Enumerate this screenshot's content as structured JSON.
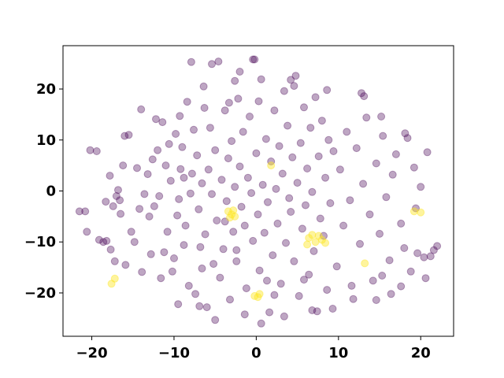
{
  "chart_data": {
    "type": "scatter",
    "title": "",
    "xlabel": "",
    "ylabel": "",
    "xlim": [
      -23.5,
      24
    ],
    "ylim": [
      -28.5,
      28.5
    ],
    "xticks": [
      -20,
      -10,
      0,
      10,
      20
    ],
    "yticks": [
      -20,
      -10,
      0,
      10,
      20
    ],
    "xtick_labels": [
      "−20",
      "−10",
      "0",
      "10",
      "20"
    ],
    "ytick_labels": [
      "−20",
      "−10",
      "0",
      "10",
      "20"
    ],
    "grid": false,
    "legend": "none",
    "series": [
      {
        "color": "#440154",
        "alpha": 0.35,
        "points": [
          [
            -21.5,
            -4
          ],
          [
            -20.8,
            -4
          ],
          [
            -20.6,
            -8
          ],
          [
            -20.2,
            8
          ],
          [
            -19.4,
            7.8
          ],
          [
            -18.6,
            -10
          ],
          [
            -18.2,
            -9.8
          ],
          [
            -17.8,
            3
          ],
          [
            -17.4,
            -3
          ],
          [
            -17,
            -1
          ],
          [
            -17.7,
            -11.5
          ],
          [
            -17.2,
            -13.8
          ],
          [
            -16.8,
            0.2
          ],
          [
            -16.5,
            -4.5
          ],
          [
            -16.2,
            5
          ],
          [
            -16,
            10.8
          ],
          [
            -15.5,
            11
          ],
          [
            -15.2,
            -8
          ],
          [
            -14.8,
            -10
          ],
          [
            -14.5,
            4.5
          ],
          [
            -14.2,
            -3.5
          ],
          [
            -14,
            16
          ],
          [
            -13.6,
            -0.6
          ],
          [
            -13.2,
            3.3
          ],
          [
            -13,
            -5
          ],
          [
            -12.6,
            6.2
          ],
          [
            -12.4,
            -3
          ],
          [
            -12,
            8
          ],
          [
            -11.8,
            -1
          ],
          [
            -11.4,
            13.5
          ],
          [
            -11.2,
            -12
          ],
          [
            -11,
            5
          ],
          [
            -10.8,
            -8
          ],
          [
            -10.4,
            2
          ],
          [
            -10.2,
            -15.8
          ],
          [
            -10,
            -13.2
          ],
          [
            -9.8,
            11.2
          ],
          [
            -9.6,
            -4.8
          ],
          [
            -9.4,
            -1.6
          ],
          [
            -9.2,
            4.3
          ],
          [
            -9,
            8.6
          ],
          [
            -8.8,
            -10.6
          ],
          [
            -8.6,
            -6.8
          ],
          [
            -8.4,
            17.5
          ],
          [
            -8.2,
            -18.6
          ],
          [
            -8,
            -0.5
          ],
          [
            -7.8,
            3.4
          ],
          [
            -7.6,
            12
          ],
          [
            -7.4,
            -20.2
          ],
          [
            -7.2,
            7
          ],
          [
            -7,
            -3.6
          ],
          [
            -6.8,
            -11
          ],
          [
            -6.6,
            1.5
          ],
          [
            -6.4,
            20.5
          ],
          [
            -6.2,
            -8.5
          ],
          [
            -6,
            -22.8
          ],
          [
            -5.8,
            4.2
          ],
          [
            -5.6,
            12.4
          ],
          [
            -5.4,
            -0.6
          ],
          [
            -5.2,
            -14.3
          ],
          [
            -5,
            8
          ],
          [
            -4.8,
            -5.8
          ],
          [
            -4.6,
            25.4
          ],
          [
            -4.4,
            -17
          ],
          [
            -4.2,
            2.2
          ],
          [
            -4,
            -11.4
          ],
          [
            -3.8,
            15.8
          ],
          [
            -3.6,
            -2
          ],
          [
            -3.4,
            6.4
          ],
          [
            -3.2,
            -21.3
          ],
          [
            -3,
            9.8
          ],
          [
            -2.8,
            -8
          ],
          [
            -2.6,
            0.8
          ],
          [
            -2.4,
            -13.8
          ],
          [
            -2.2,
            18.1
          ],
          [
            -2,
            4.8
          ],
          [
            -1.8,
            -3.1
          ],
          [
            -1.6,
            11.6
          ],
          [
            -1.4,
            -6.8
          ],
          [
            -1.2,
            -19.1
          ],
          [
            -1,
            2.6
          ],
          [
            -0.8,
            14.6
          ],
          [
            -0.6,
            -0.4
          ],
          [
            -0.4,
            -9.8
          ],
          [
            -0.2,
            25.8
          ],
          [
            0,
            7.4
          ],
          [
            0.2,
            -4.6
          ],
          [
            0.4,
            -15.6
          ],
          [
            0.6,
            21.9
          ],
          [
            0.8,
            1.2
          ],
          [
            1,
            -8.2
          ],
          [
            1.2,
            10.2
          ],
          [
            1.4,
            -2.2
          ],
          [
            1.6,
            -23.8
          ],
          [
            1.8,
            5.8
          ],
          [
            2,
            -12.6
          ],
          [
            2.2,
            15.8
          ],
          [
            2.4,
            0.4
          ],
          [
            2.6,
            -6.4
          ],
          [
            2.8,
            8.8
          ],
          [
            3,
            -18.2
          ],
          [
            3.2,
            3.4
          ],
          [
            3.4,
            19.6
          ],
          [
            3.6,
            -10.2
          ],
          [
            3.8,
            12.8
          ],
          [
            4,
            -1.4
          ],
          [
            4.2,
            -4.1
          ],
          [
            4.4,
            6.6
          ],
          [
            4.6,
            -13.8
          ],
          [
            4.8,
            22.6
          ],
          [
            5,
            1.6
          ],
          [
            5.2,
            -20.6
          ],
          [
            5.4,
            9.4
          ],
          [
            5.6,
            -7.4
          ],
          [
            5.8,
            16.4
          ],
          [
            6,
            -2.8
          ],
          [
            6.2,
            4.4
          ],
          [
            6.4,
            -16.4
          ],
          [
            6.6,
            12.4
          ],
          [
            6.8,
            -0.2
          ],
          [
            7,
            -11.8
          ],
          [
            7.2,
            18.4
          ],
          [
            7.4,
            -23.6
          ],
          [
            7.6,
            6.8
          ],
          [
            7.8,
            -5.4
          ],
          [
            8,
            13.8
          ],
          [
            8.2,
            -8.8
          ],
          [
            8.4,
            2.6
          ],
          [
            8.6,
            -19.4
          ],
          [
            8.8,
            10
          ],
          [
            9,
            -2.4
          ],
          [
            9.4,
            7.8
          ],
          [
            9.8,
            -14.8
          ],
          [
            10.2,
            4.2
          ],
          [
            10.6,
            -6.8
          ],
          [
            11,
            11.6
          ],
          [
            11.4,
            -1.8
          ],
          [
            11.8,
            -21.2
          ],
          [
            12.2,
            8.4
          ],
          [
            12.6,
            -10.4
          ],
          [
            13,
            1.4
          ],
          [
            13.4,
            14.4
          ],
          [
            13.8,
            -4.6
          ],
          [
            14.2,
            -17.6
          ],
          [
            14.6,
            5.4
          ],
          [
            15,
            -8.4
          ],
          [
            15.4,
            10.8
          ],
          [
            15.8,
            -1.2
          ],
          [
            16.2,
            -13.6
          ],
          [
            16.6,
            3.2
          ],
          [
            17,
            7.2
          ],
          [
            17.6,
            -6.4
          ],
          [
            18,
            -11.2
          ],
          [
            18.4,
            10.4
          ],
          [
            18.8,
            -15.8
          ],
          [
            19.2,
            4.6
          ],
          [
            19.6,
            -12.2
          ],
          [
            20,
            0.8
          ],
          [
            20.4,
            -13
          ],
          [
            20.8,
            7.6
          ],
          [
            21.2,
            -12.8
          ],
          [
            21.6,
            -11.6
          ],
          [
            22,
            -10.8
          ],
          [
            -16.6,
            -1.8
          ],
          [
            -12.8,
            -12.4
          ],
          [
            -10.6,
            9.2
          ],
          [
            -8.8,
            2.6
          ],
          [
            -6.6,
            -15.2
          ],
          [
            -5,
            -25.3
          ],
          [
            -3.8,
            -6
          ],
          [
            -2.6,
            21.6
          ],
          [
            -1.4,
            -24.2
          ],
          [
            0.6,
            -26
          ],
          [
            2.2,
            -20.4
          ],
          [
            3.4,
            -24.6
          ],
          [
            4.6,
            20.6
          ],
          [
            6.8,
            -23.4
          ],
          [
            8.6,
            19.8
          ],
          [
            12.8,
            19.2
          ],
          [
            14.6,
            -21.4
          ],
          [
            16.4,
            -20.2
          ],
          [
            -7.9,
            25.3
          ],
          [
            -5.4,
            24.9
          ],
          [
            -2,
            23.4
          ],
          [
            -0.4,
            25.8
          ],
          [
            4.2,
            21.8
          ],
          [
            13.1,
            18.6
          ],
          [
            15.2,
            14.6
          ],
          [
            18.1,
            11.3
          ],
          [
            19.4,
            -3.4
          ],
          [
            -19.1,
            -9.6
          ],
          [
            -18.3,
            -2.1
          ],
          [
            -15.9,
            -14.5
          ],
          [
            -13.9,
            -15.9
          ],
          [
            -11.6,
            -17.1
          ],
          [
            -9.5,
            -22.2
          ],
          [
            -6.9,
            -22.6
          ],
          [
            -2.4,
            -11.6
          ],
          [
            1.3,
            -17.6
          ],
          [
            5.8,
            -17.4
          ],
          [
            9.3,
            -23.1
          ],
          [
            11.6,
            -18.6
          ],
          [
            15.3,
            -16.6
          ],
          [
            17.6,
            -18.7
          ],
          [
            20.6,
            -17.1
          ],
          [
            -12.2,
            14.1
          ],
          [
            -9.3,
            14.7
          ],
          [
            -6.3,
            16.3
          ],
          [
            -3.3,
            17.3
          ],
          [
            0.3,
            17.6
          ]
        ]
      },
      {
        "color": "#fde725",
        "alpha": 0.45,
        "points": [
          [
            -3.4,
            -4
          ],
          [
            -3,
            -4.6
          ],
          [
            -2.8,
            -3.8
          ],
          [
            -3.2,
            -5.2
          ],
          [
            -2.6,
            -5
          ],
          [
            1.8,
            5
          ],
          [
            0.2,
            -20.8
          ],
          [
            -0.2,
            -20.6
          ],
          [
            0.4,
            -20.2
          ],
          [
            -17.6,
            -18.2
          ],
          [
            -17.2,
            -17.2
          ],
          [
            6.4,
            -9.2
          ],
          [
            6.8,
            -8.6
          ],
          [
            7.2,
            -10
          ],
          [
            7.6,
            -8.8
          ],
          [
            8,
            -9.6
          ],
          [
            8.4,
            -10.2
          ],
          [
            6.2,
            -10.5
          ],
          [
            13.2,
            -14.2
          ],
          [
            19.2,
            -4
          ],
          [
            20,
            -4.2
          ]
        ]
      }
    ]
  }
}
